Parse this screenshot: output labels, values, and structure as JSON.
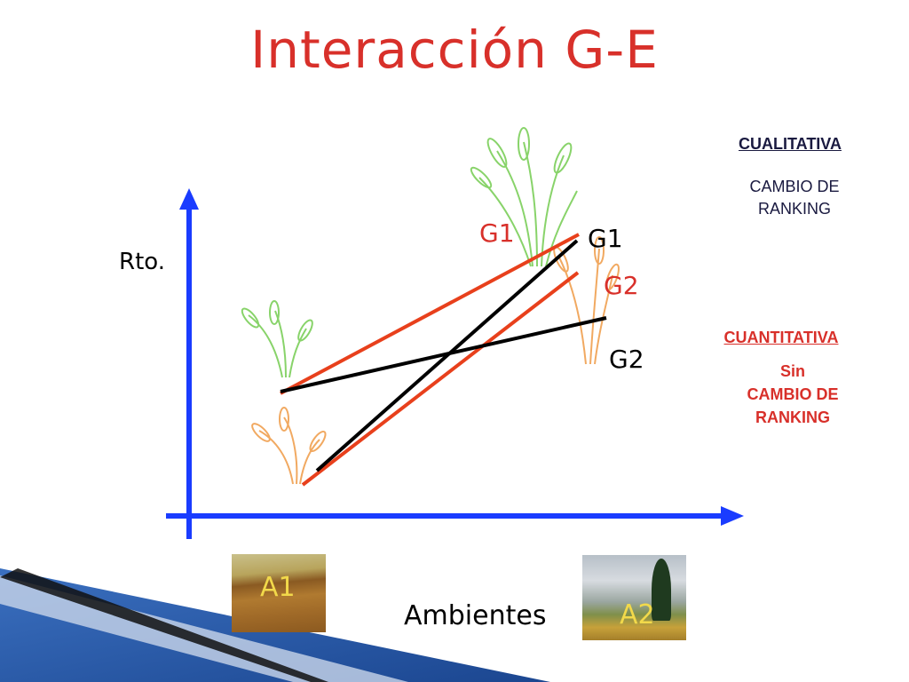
{
  "title": "Interacción G-E",
  "axes": {
    "y_label": "Rto.",
    "x_label": "Ambientes"
  },
  "environments": [
    {
      "id": "a1",
      "label": "A1"
    },
    {
      "id": "a2",
      "label": "A2"
    }
  ],
  "line_labels": {
    "g1_red": "G1",
    "g1_black": "G1",
    "g2_red": "G2",
    "g2_black": "G2"
  },
  "legend": {
    "cualitativa": {
      "heading": "CUALITATIVA",
      "line1": "CAMBIO DE",
      "line2": "RANKING"
    },
    "cuantitativa": {
      "heading": "CUANTITATIVA",
      "line1": "Sin",
      "line2": "CAMBIO DE",
      "line3": "RANKING"
    }
  },
  "colors": {
    "title": "#d8302a",
    "axis": "#1a3cff",
    "red_series": "#e8401c",
    "black_series": "#000000",
    "green_plant": "#7ccf5a",
    "orange_plant": "#f0a050",
    "corner_band": "#2a5ca8"
  }
}
